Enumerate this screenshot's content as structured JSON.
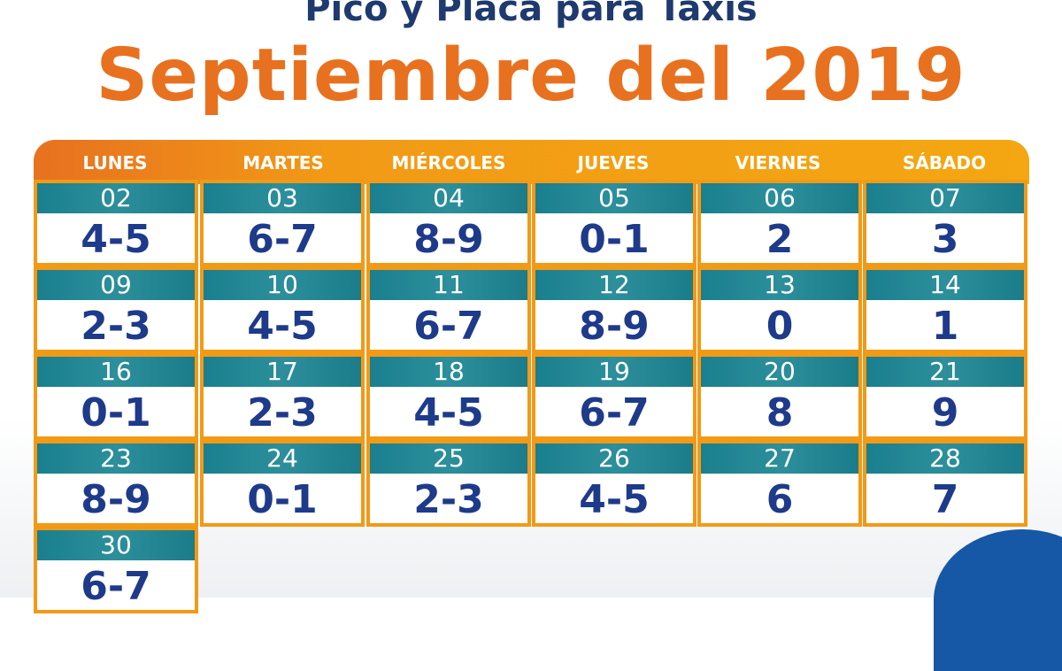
{
  "header": {
    "subtitle": "Pico y Placa para Taxis",
    "title": "Septiembre del 2019"
  },
  "colors": {
    "orange": "#e8711f",
    "amber": "#f29a16",
    "teal": "#1a7f8e",
    "navy": "#1e3a8a"
  },
  "days": [
    "LUNES",
    "MARTES",
    "MIÉRCOLES",
    "JUEVES",
    "VIERNES",
    "SÁBADO"
  ],
  "weeks": [
    [
      {
        "date": "02",
        "plates": "4-5"
      },
      {
        "date": "03",
        "plates": "6-7"
      },
      {
        "date": "04",
        "plates": "8-9"
      },
      {
        "date": "05",
        "plates": "0-1"
      },
      {
        "date": "06",
        "plates": "2"
      },
      {
        "date": "07",
        "plates": "3"
      }
    ],
    [
      {
        "date": "09",
        "plates": "2-3"
      },
      {
        "date": "10",
        "plates": "4-5"
      },
      {
        "date": "11",
        "plates": "6-7"
      },
      {
        "date": "12",
        "plates": "8-9"
      },
      {
        "date": "13",
        "plates": "0"
      },
      {
        "date": "14",
        "plates": "1"
      }
    ],
    [
      {
        "date": "16",
        "plates": "0-1"
      },
      {
        "date": "17",
        "plates": "2-3"
      },
      {
        "date": "18",
        "plates": "4-5"
      },
      {
        "date": "19",
        "plates": "6-7"
      },
      {
        "date": "20",
        "plates": "8"
      },
      {
        "date": "21",
        "plates": "9"
      }
    ],
    [
      {
        "date": "23",
        "plates": "8-9"
      },
      {
        "date": "24",
        "plates": "0-1"
      },
      {
        "date": "25",
        "plates": "2-3"
      },
      {
        "date": "26",
        "plates": "4-5"
      },
      {
        "date": "27",
        "plates": "6"
      },
      {
        "date": "28",
        "plates": "7"
      }
    ],
    [
      {
        "date": "30",
        "plates": "6-7"
      }
    ]
  ]
}
